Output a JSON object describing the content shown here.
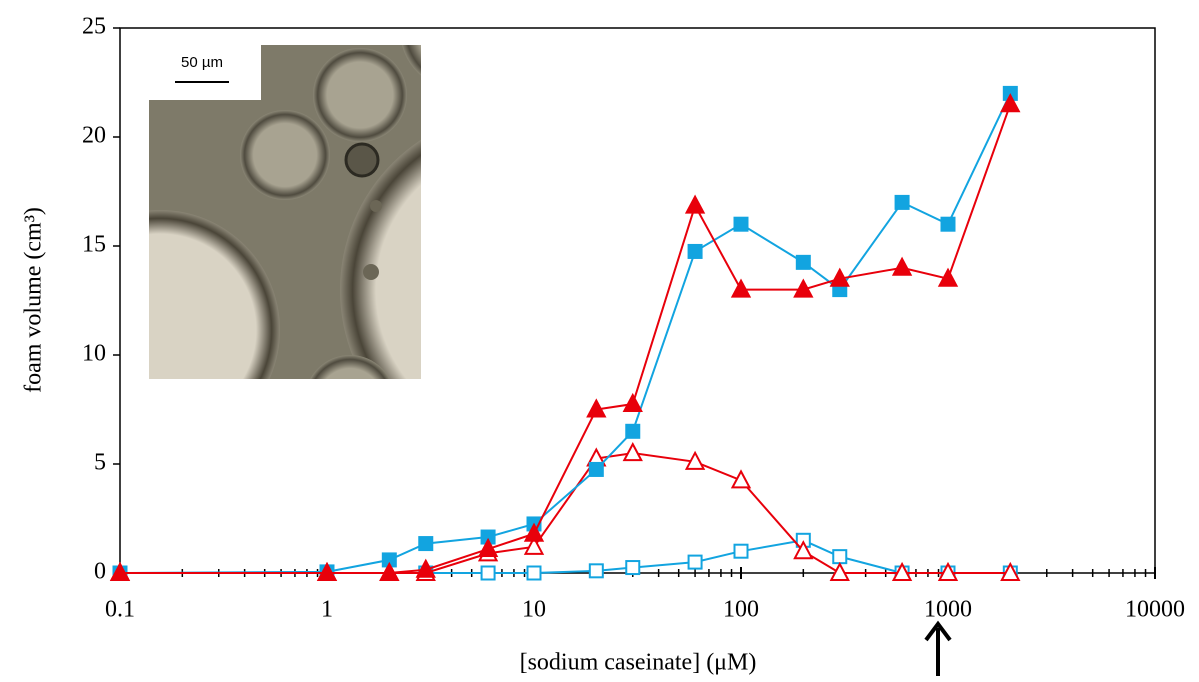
{
  "chart_data": {
    "type": "line",
    "x_label": "[sodium caseinate] (μM)",
    "y_label": "foam volume (cm³)",
    "inset_scale_label": "50 µm",
    "x_log": true,
    "xlim": [
      0.1,
      10000
    ],
    "xticks": [
      0.1,
      1,
      10,
      100,
      1000,
      10000
    ],
    "ylim": [
      0,
      25
    ],
    "yticks": [
      0,
      5,
      10,
      15,
      20,
      25
    ],
    "grid": false,
    "series": [
      {
        "color": "#12a4e0",
        "marker": "square",
        "filled": false,
        "x": [
          3,
          6,
          10,
          20,
          30,
          60,
          100,
          200,
          300,
          600,
          1000,
          2000
        ],
        "values": [
          0,
          0,
          0,
          0.1,
          0.25,
          0.5,
          1,
          1.5,
          0.75,
          0,
          0,
          0
        ]
      },
      {
        "color": "#e8000b",
        "marker": "triangle",
        "filled": false,
        "x": [
          0.1,
          1,
          2,
          3,
          6,
          10,
          20,
          30,
          60,
          100,
          200,
          300,
          600,
          1000,
          2000
        ],
        "values": [
          0,
          0,
          0,
          0,
          0.9,
          1.2,
          5.25,
          5.5,
          5.1,
          4.25,
          1,
          0,
          0,
          0,
          0
        ]
      },
      {
        "color": "#12a4e0",
        "marker": "square",
        "filled": true,
        "x": [
          0.1,
          1,
          2,
          3,
          6,
          10,
          20,
          30,
          60,
          100,
          200,
          300,
          600,
          1000,
          2000
        ],
        "values": [
          0,
          0.05,
          0.6,
          1.35,
          1.65,
          2.25,
          4.75,
          6.5,
          14.75,
          16,
          14.25,
          13,
          17,
          16,
          22
        ]
      },
      {
        "color": "#e8000b",
        "marker": "triangle",
        "filled": true,
        "x": [
          0.1,
          1,
          2,
          3,
          6,
          10,
          20,
          30,
          60,
          100,
          200,
          300,
          600,
          1000,
          2000
        ],
        "values": [
          0,
          0,
          0,
          0.15,
          1.1,
          1.8,
          7.5,
          7.75,
          16.85,
          13,
          13,
          13.5,
          14,
          13.5,
          21.5
        ]
      }
    ]
  }
}
